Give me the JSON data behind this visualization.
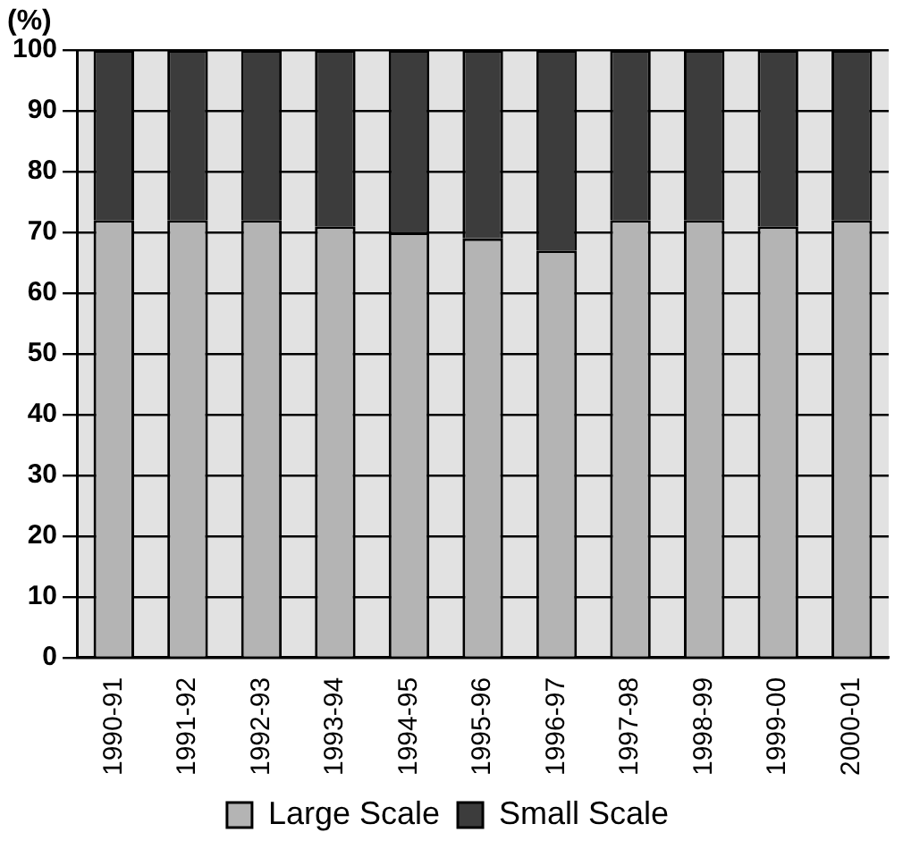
{
  "chart_data": {
    "type": "bar",
    "stacked": true,
    "ylabel": "(%)",
    "categories": [
      "1990-91",
      "1991-92",
      "1992-93",
      "1993-94",
      "1994-95",
      "1995-96",
      "1996-97",
      "1997-98",
      "1998-99",
      "1999-00",
      "2000-01"
    ],
    "series": [
      {
        "name": "Large Scale",
        "color": "#b4b4b4",
        "values": [
          72,
          72,
          72,
          71,
          70,
          69,
          67,
          72,
          72,
          71,
          72
        ]
      },
      {
        "name": "Small Scale",
        "color": "#3c3c3c",
        "values": [
          28,
          28,
          28,
          29,
          30,
          31,
          33,
          28,
          28,
          29,
          28
        ]
      }
    ],
    "ylim": [
      0,
      100
    ],
    "yticks": [
      0,
      10,
      20,
      30,
      40,
      50,
      60,
      70,
      80,
      90,
      100
    ],
    "grid": "y",
    "legend": "bottom"
  }
}
